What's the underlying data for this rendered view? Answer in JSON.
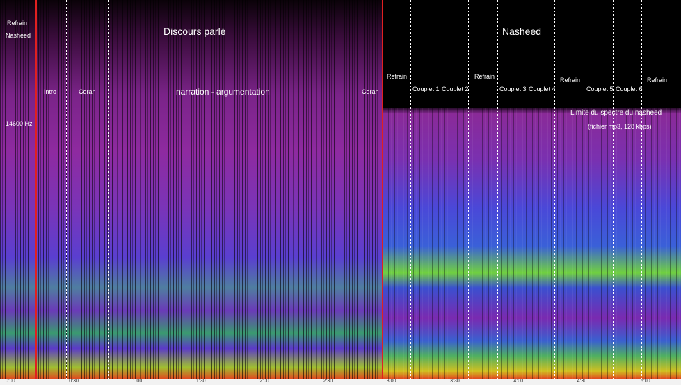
{
  "header": {
    "left_top": [
      "Refrain",
      "Nasheed"
    ],
    "frequency_label": "14600 Hz"
  },
  "sections": [
    {
      "title": "Discours parlé",
      "labels": [
        "Intro",
        "Coran",
        "narration - argumentation",
        "Coran"
      ]
    },
    {
      "title": "Nasheed",
      "labels": [
        "Refrain",
        "Couplet 1",
        "Couplet 2",
        "Refrain",
        "Couplet 3",
        "Couplet 4",
        "Refrain",
        "Couplet 5",
        "Couplet 6",
        "Refrain"
      ],
      "note": [
        "Limite du spectre du nasheed",
        "(fichier mp3, 128 kbps)"
      ]
    }
  ],
  "time_axis": [
    "0:00",
    "0:30",
    "1:00",
    "1:30",
    "2:00",
    "2:30",
    "3:00",
    "3:30",
    "4:00",
    "4:30",
    "5:00"
  ]
}
